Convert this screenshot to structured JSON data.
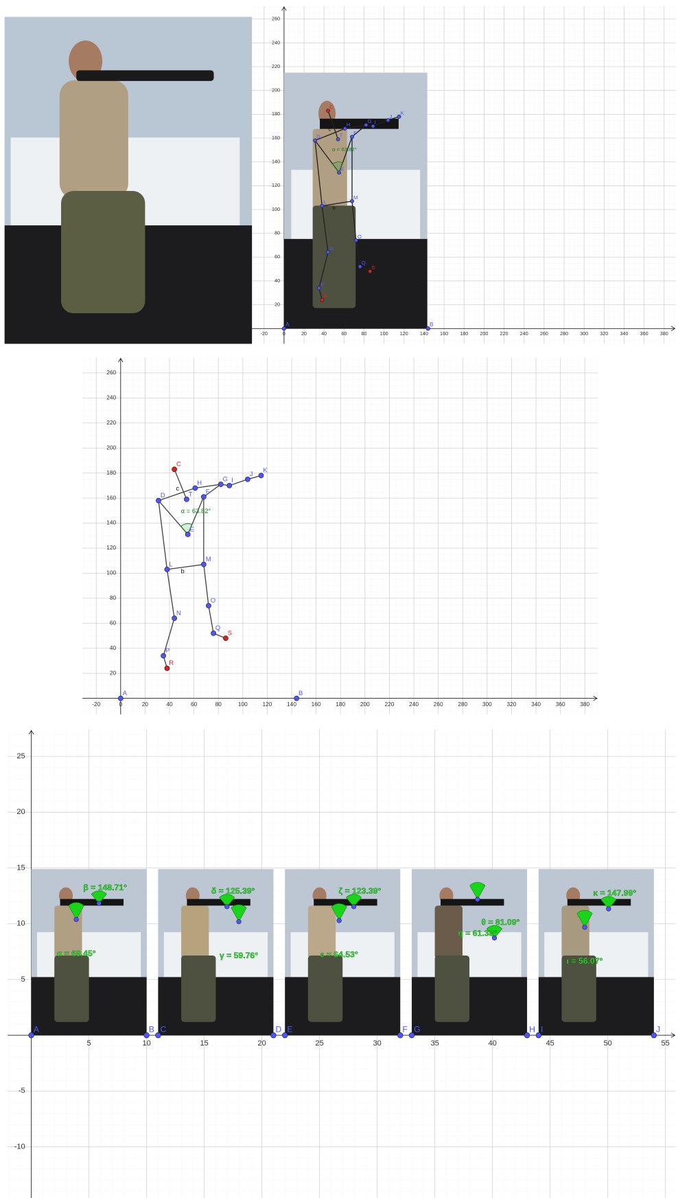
{
  "axes_pose": {
    "xticks": [
      -20,
      0,
      20,
      40,
      60,
      80,
      100,
      120,
      140,
      160,
      180,
      200,
      220,
      240,
      260,
      280,
      300,
      320,
      340,
      360,
      380
    ],
    "yticks": [
      20,
      40,
      60,
      80,
      100,
      120,
      140,
      160,
      180,
      200,
      220,
      240,
      260
    ]
  },
  "base_points": [
    {
      "label": "A",
      "x": 0,
      "y": 0
    },
    {
      "label": "B",
      "x": 144,
      "y": 0
    }
  ],
  "skeleton": {
    "points": [
      {
        "label": "C",
        "x": 44,
        "y": 183,
        "color": "red"
      },
      {
        "label": "D",
        "x": 31,
        "y": 158,
        "color": "blue"
      },
      {
        "label": "T",
        "x": 54,
        "y": 159,
        "color": "blue"
      },
      {
        "label": "H",
        "x": 61,
        "y": 168,
        "color": "blue"
      },
      {
        "label": "F",
        "x": 68,
        "y": 161,
        "color": "blue"
      },
      {
        "label": "G",
        "x": 82,
        "y": 171,
        "color": "blue"
      },
      {
        "label": "I",
        "x": 89,
        "y": 170,
        "color": "blue"
      },
      {
        "label": "J",
        "x": 104,
        "y": 175,
        "color": "blue"
      },
      {
        "label": "K",
        "x": 115,
        "y": 178,
        "color": "blue"
      },
      {
        "label": "E",
        "x": 55,
        "y": 131,
        "color": "blue"
      },
      {
        "label": "L",
        "x": 38,
        "y": 103,
        "color": "blue"
      },
      {
        "label": "M",
        "x": 68,
        "y": 107,
        "color": "blue"
      },
      {
        "label": "N",
        "x": 44,
        "y": 64,
        "color": "blue"
      },
      {
        "label": "O",
        "x": 72,
        "y": 74,
        "color": "blue"
      },
      {
        "label": "Q",
        "x": 76,
        "y": 52,
        "color": "blue"
      },
      {
        "label": "S",
        "x": 86,
        "y": 48,
        "color": "red"
      },
      {
        "label": "P",
        "x": 35,
        "y": 34,
        "color": "blue"
      },
      {
        "label": "R",
        "x": 38,
        "y": 24,
        "color": "red"
      }
    ],
    "edges": [
      [
        "C",
        "T"
      ],
      [
        "D",
        "H"
      ],
      [
        "D",
        "E"
      ],
      [
        "E",
        "F"
      ],
      [
        "F",
        "G"
      ],
      [
        "H",
        "G"
      ],
      [
        "G",
        "I"
      ],
      [
        "I",
        "J"
      ],
      [
        "J",
        "K"
      ],
      [
        "F",
        "M"
      ],
      [
        "D",
        "L"
      ],
      [
        "L",
        "M"
      ],
      [
        "L",
        "N"
      ],
      [
        "N",
        "P"
      ],
      [
        "P",
        "R"
      ],
      [
        "M",
        "O"
      ],
      [
        "O",
        "Q"
      ],
      [
        "Q",
        "S"
      ]
    ],
    "segment_labels": [
      {
        "text": "c",
        "edge": 0
      },
      {
        "text": "b",
        "edge": 11
      }
    ],
    "angle": {
      "label": "α = 63.82°",
      "vertex": "E",
      "from": "D",
      "to": "F"
    }
  },
  "comparison": {
    "xticks": [
      5,
      10,
      15,
      20,
      25,
      30,
      35,
      40,
      45,
      50,
      55
    ],
    "yticks": [
      -10,
      -5,
      5,
      10,
      15,
      20,
      25
    ],
    "points": [
      {
        "label": "A",
        "x": 0,
        "y": 0
      },
      {
        "label": "B",
        "x": 10,
        "y": 0
      },
      {
        "label": "C",
        "x": 11,
        "y": 0
      },
      {
        "label": "D",
        "x": 21,
        "y": 0
      },
      {
        "label": "E",
        "x": 22,
        "y": 0
      },
      {
        "label": "F",
        "x": 32,
        "y": 0
      },
      {
        "label": "G",
        "x": 33,
        "y": 0
      },
      {
        "label": "H",
        "x": 43,
        "y": 0
      },
      {
        "label": "I",
        "x": 44,
        "y": 0
      },
      {
        "label": "J",
        "x": 54,
        "y": 0
      }
    ],
    "angles": [
      "β = 148.71°",
      "α = 69.45°",
      "δ = 125.39°",
      "γ = 59.76°",
      "ζ = 123.39°",
      "ε = 64.53°",
      "θ = 81.09°",
      "η = 61.38°",
      "κ = 147.99°",
      "ι = 56.07°"
    ]
  }
}
